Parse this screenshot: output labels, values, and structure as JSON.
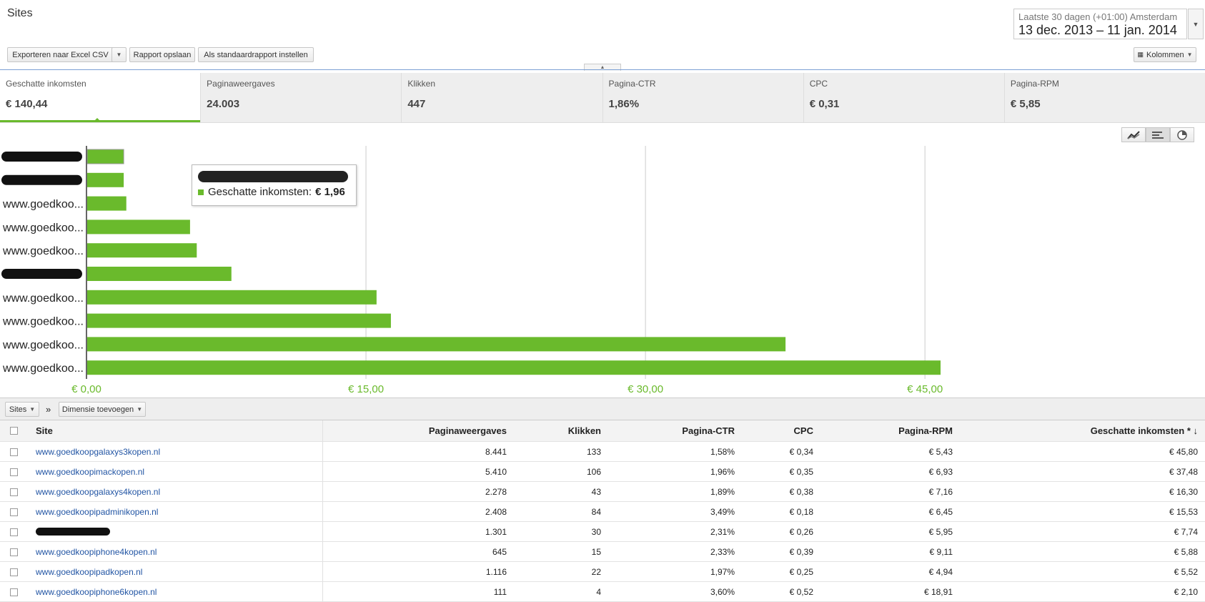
{
  "header": {
    "title": "Sites",
    "date_label": "Laatste 30 dagen (+01:00) Amsterdam",
    "date_range": "13 dec. 2013 – 11 jan. 2014"
  },
  "toolbar": {
    "export_label": "Exporteren naar Excel CSV",
    "save_report_label": "Rapport opslaan",
    "default_report_label": "Als standaardrapport instellen",
    "columns_label": "Kolommen"
  },
  "scorecards": [
    {
      "label": "Geschatte inkomsten",
      "value": "€ 140,44"
    },
    {
      "label": "Paginaweergaves",
      "value": "24.003"
    },
    {
      "label": "Klikken",
      "value": "447"
    },
    {
      "label": "Pagina-CTR",
      "value": "1,86%"
    },
    {
      "label": "CPC",
      "value": "€ 0,31"
    },
    {
      "label": "Pagina-RPM",
      "value": "€ 5,85"
    }
  ],
  "chart_data": {
    "type": "bar",
    "orientation": "horizontal",
    "categories": [
      "",
      "",
      "www.goedkoo...",
      "www.goedkoo...",
      "www.goedkoo...",
      "",
      "www.goedkoo...",
      "www.goedkoo...",
      "www.goedkoo...",
      "www.goedkoo..."
    ],
    "series": [
      {
        "name": "Geschatte inkomsten",
        "color": "#6aba2c",
        "values": [
          1.96,
          1.96,
          2.1,
          5.52,
          5.88,
          7.74,
          15.53,
          16.3,
          37.48,
          45.8
        ]
      }
    ],
    "xlim": [
      0,
      61.7
    ],
    "xticks": [
      "€ 0,00",
      "€ 15,00",
      "€ 30,00",
      "€ 45,00"
    ],
    "xtick_values": [
      0,
      15,
      30,
      45
    ],
    "grid": true,
    "tooltip": {
      "label": "Geschatte inkomsten:",
      "value": "€ 1,96"
    }
  },
  "chart_toggles": [
    "line-chart-icon",
    "bar-chart-icon",
    "pie-chart-icon"
  ],
  "dimension_bar": {
    "dimension_label": "Sites",
    "separator": "»",
    "add_dimension_label": "Dimensie toevoegen"
  },
  "table": {
    "headers": [
      "Site",
      "Paginaweergaves",
      "Klikken",
      "Pagina-CTR",
      "CPC",
      "Pagina-RPM",
      "Geschatte inkomsten * ↓"
    ],
    "rows": [
      [
        "www.goedkoopgalaxys3kopen.nl",
        "8.441",
        "133",
        "1,58%",
        "€ 0,34",
        "€ 5,43",
        "€ 45,80"
      ],
      [
        "www.goedkoopimackopen.nl",
        "5.410",
        "106",
        "1,96%",
        "€ 0,35",
        "€ 6,93",
        "€ 37,48"
      ],
      [
        "www.goedkoopgalaxys4kopen.nl",
        "2.278",
        "43",
        "1,89%",
        "€ 0,38",
        "€ 7,16",
        "€ 16,30"
      ],
      [
        "www.goedkoopipadminikopen.nl",
        "2.408",
        "84",
        "3,49%",
        "€ 0,18",
        "€ 6,45",
        "€ 15,53"
      ],
      [
        "",
        "1.301",
        "30",
        "2,31%",
        "€ 0,26",
        "€ 5,95",
        "€ 7,74"
      ],
      [
        "www.goedkoopiphone4kopen.nl",
        "645",
        "15",
        "2,33%",
        "€ 0,39",
        "€ 9,11",
        "€ 5,88"
      ],
      [
        "www.goedkoopipadkopen.nl",
        "1.116",
        "22",
        "1,97%",
        "€ 0,25",
        "€ 4,94",
        "€ 5,52"
      ],
      [
        "www.goedkoopiphone6kopen.nl",
        "111",
        "4",
        "3,60%",
        "€ 0,52",
        "€ 18,91",
        "€ 2,10"
      ]
    ]
  }
}
